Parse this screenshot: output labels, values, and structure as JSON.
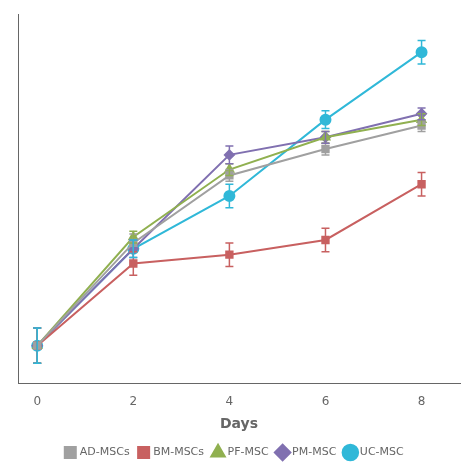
{
  "chart_data": {
    "type": "line",
    "x_label": "Days",
    "x": [
      0,
      2,
      4,
      6,
      8
    ],
    "xlim": [
      -0.4,
      8.8
    ],
    "xticks": [
      0,
      2,
      4,
      6,
      8
    ],
    "ylim": [
      -0.08,
      1.18
    ],
    "tick_labels": "x",
    "grid": false,
    "legend": "bottom",
    "series": [
      {
        "name": "AD-MSCs",
        "color": "#a0a0a0",
        "marker": "square",
        "values": [
          0.05,
          0.4,
          0.63,
          0.72,
          0.8
        ],
        "yerr": [
          0.06,
          0.03,
          0.02,
          0.02,
          0.02
        ]
      },
      {
        "name": "BM-MSCs",
        "color": "#c86060",
        "marker": "square",
        "values": [
          0.05,
          0.33,
          0.36,
          0.41,
          0.6
        ],
        "yerr": [
          0.06,
          0.04,
          0.04,
          0.04,
          0.04
        ]
      },
      {
        "name": "PF-MSC",
        "color": "#90b050",
        "marker": "triangle",
        "values": [
          0.05,
          0.42,
          0.65,
          0.76,
          0.82
        ],
        "yerr": [
          0.06,
          0.02,
          0.02,
          0.02,
          0.02
        ]
      },
      {
        "name": "PM-MSC",
        "color": "#8070b0",
        "marker": "diamond",
        "values": [
          0.05,
          0.38,
          0.7,
          0.76,
          0.84
        ],
        "yerr": [
          0.06,
          0.03,
          0.03,
          0.02,
          0.02
        ]
      },
      {
        "name": "UC-MSC",
        "color": "#30b8d8",
        "marker": "circle",
        "values": [
          0.05,
          0.38,
          0.56,
          0.82,
          1.05
        ],
        "yerr": [
          0.06,
          0.03,
          0.04,
          0.03,
          0.04
        ]
      }
    ]
  }
}
